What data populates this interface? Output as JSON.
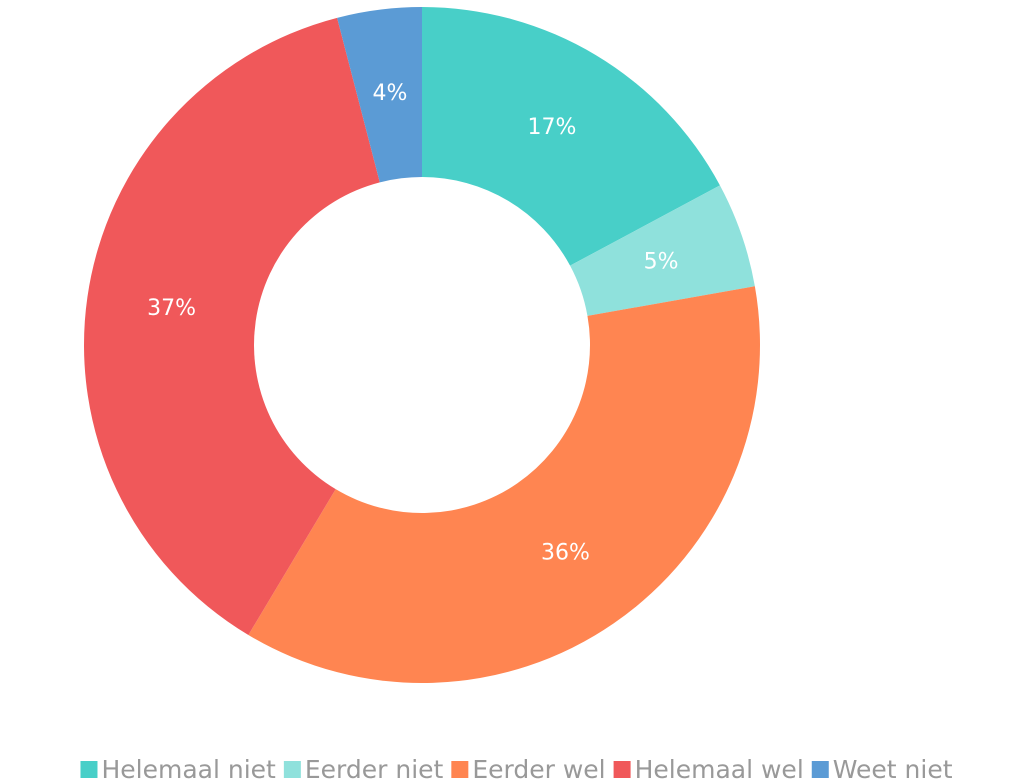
{
  "chart_data": {
    "type": "donut",
    "categories": [
      "Helemaal niet",
      "Eerder niet",
      "Eerder wel",
      "Helemaal wel",
      "Weet niet"
    ],
    "values": [
      17,
      5,
      36,
      37,
      4
    ],
    "value_labels": [
      "17%",
      "5%",
      "36%",
      "37%",
      "4%"
    ],
    "colors": [
      "#48cfc8",
      "#8fe1dc",
      "#ff8551",
      "#f0585a",
      "#5b9bd5"
    ],
    "legend": "bottom"
  }
}
